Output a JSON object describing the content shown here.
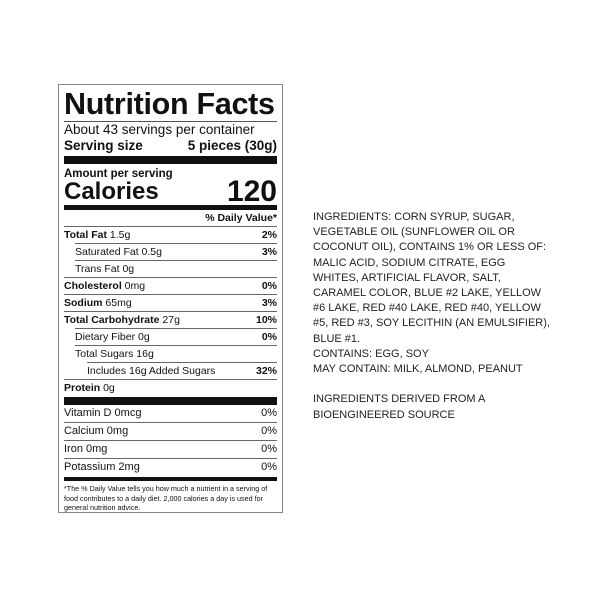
{
  "label": {
    "title": "Nutrition Facts",
    "servings": "About 43 servings per container",
    "serving_size_label": "Serving size",
    "serving_size_value": "5 pieces (30g)",
    "amount_per_serving": "Amount per serving",
    "calories_label": "Calories",
    "calories_value": "120",
    "dv_header": "% Daily Value*",
    "nutrients": [
      {
        "name": "Total Fat",
        "amount": " 1.5g",
        "dv": "2%"
      },
      {
        "name": "Saturated Fat 0.5g",
        "amount": "",
        "dv": "3%"
      },
      {
        "name": "Trans Fat 0g",
        "amount": "",
        "dv": ""
      },
      {
        "name": "Cholesterol",
        "amount": " 0mg",
        "dv": "0%"
      },
      {
        "name": "Sodium",
        "amount": " 65mg",
        "dv": "3%"
      },
      {
        "name": "Total Carbohydrate",
        "amount": " 27g",
        "dv": "10%"
      },
      {
        "name": "Dietary Fiber 0g",
        "amount": "",
        "dv": "0%"
      },
      {
        "name": "Total Sugars 16g",
        "amount": "",
        "dv": ""
      },
      {
        "name": "Includes 16g Added Sugars",
        "amount": "",
        "dv": "32%"
      },
      {
        "name": "Protein",
        "amount": " 0g",
        "dv": ""
      }
    ],
    "vitamins": [
      {
        "name": "Vitamin D 0mcg",
        "dv": "0%"
      },
      {
        "name": "Calcium 0mg",
        "dv": "0%"
      },
      {
        "name": "Iron 0mg",
        "dv": "0%"
      },
      {
        "name": "Potassium 2mg",
        "dv": "0%"
      }
    ],
    "footnote": "*The % Daily Value tells you how much a nutrient in a serving of food contributes to a daily diet. 2,000 calories a day is used for general nutrition advice."
  },
  "ingredients": {
    "text": "INGREDIENTS: CORN SYRUP, SUGAR, VEGETABLE OIL (SUNFLOWER OIL OR COCONUT OIL), CONTAINS 1% OR LESS OF: MALIC ACID, SODIUM CITRATE, EGG WHITES, ARTIFICIAL FLAVOR, SALT, CARAMEL COLOR, BLUE #2 LAKE, YELLOW #6 LAKE, RED #40 LAKE, RED #40, YELLOW #5, RED #3, SOY LECITHIN (AN EMULSIFIER), BLUE #1.",
    "contains": "CONTAINS: EGG, SOY",
    "may_contain": "MAY CONTAIN: MILK, ALMOND, PEANUT",
    "bioengineered": "INGREDIENTS DERIVED FROM A BIOENGINEERED SOURCE"
  }
}
